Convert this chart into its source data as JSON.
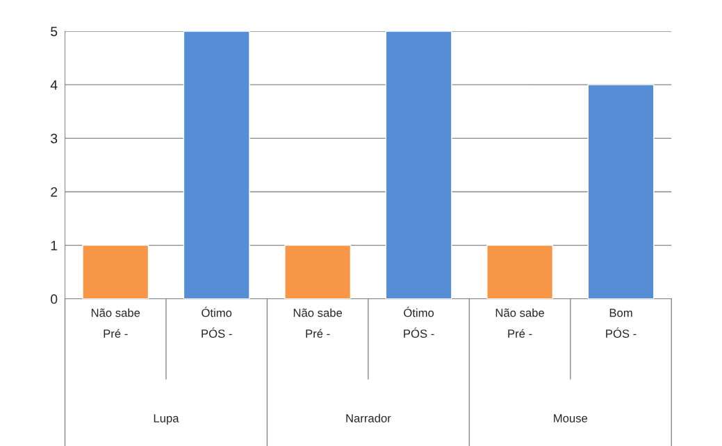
{
  "chart_data": {
    "type": "bar",
    "categories": [
      "Não sabe\nPré -",
      "Ótimo\nPÓS -",
      "Não sabe\nPré -",
      "Ótimo\nPÓS -",
      "Não sabe\nPré -",
      "Bom\nPÓS -"
    ],
    "values": [
      1,
      5,
      1,
      5,
      1,
      4
    ],
    "colors": [
      "#f79646",
      "#558ed5",
      "#f79646",
      "#558ed5",
      "#f79646",
      "#558ed5"
    ],
    "annotations": [
      "Lupa",
      "Narrador",
      "Mouse"
    ],
    "ylim": [
      0,
      5
    ],
    "yticks": [
      0,
      1,
      2,
      3,
      4,
      5
    ],
    "grid": "y"
  }
}
